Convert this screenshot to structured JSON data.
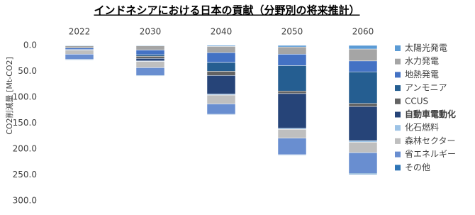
{
  "chart_data": {
    "type": "stacked_bar",
    "title": "インドネシアにおける日本の貢献（分野別の将来推計）",
    "y_label": "CO2削減量 [Mt-CO2]",
    "y_inverted": true,
    "categories": [
      "2022",
      "2030",
      "2040",
      "2050",
      "2060"
    ],
    "ylim": [
      0,
      300
    ],
    "yticks": [
      {
        "value": 0,
        "label": "0.0"
      },
      {
        "value": 50,
        "label": "50.0"
      },
      {
        "value": 100,
        "label": "100.0"
      },
      {
        "value": 150,
        "label": "150.0"
      },
      {
        "value": 200,
        "label": "200.0"
      },
      {
        "value": 250,
        "label": "250.0"
      },
      {
        "value": 300,
        "label": "300.0"
      }
    ],
    "series": [
      {
        "name": "太陽光発電",
        "color": "#5b9bd5",
        "values": [
          1,
          1,
          2,
          3,
          7
        ]
      },
      {
        "name": "水力発電",
        "color": "#a5a5a5",
        "values": [
          4,
          8,
          12,
          14,
          23
        ]
      },
      {
        "name": "地熱発電",
        "color": "#4472c4",
        "values": [
          3,
          9,
          19,
          22,
          21
        ]
      },
      {
        "name": "アンモニア",
        "color": "#255e91",
        "values": [
          0,
          3,
          17,
          49,
          61
        ]
      },
      {
        "name": "CCUS",
        "color": "#636363",
        "values": [
          0,
          4,
          8,
          5,
          6
        ]
      },
      {
        "name": "自動車電動化",
        "color": "#264478",
        "values": [
          0,
          5,
          36,
          67,
          66
        ],
        "bold": true
      },
      {
        "name": "化石燃料",
        "color": "#9dc3e6",
        "values": [
          1,
          1,
          2,
          2,
          3
        ]
      },
      {
        "name": "森林セクター",
        "color": "#bfbfbf",
        "values": [
          8,
          12,
          17,
          17,
          20
        ]
      },
      {
        "name": "省エネルギー",
        "color": "#698ed0",
        "values": [
          10,
          15,
          20,
          32,
          40
        ]
      },
      {
        "name": "その他",
        "color": "#2e75b6",
        "values": [
          1,
          1,
          1,
          1,
          2
        ]
      }
    ]
  }
}
